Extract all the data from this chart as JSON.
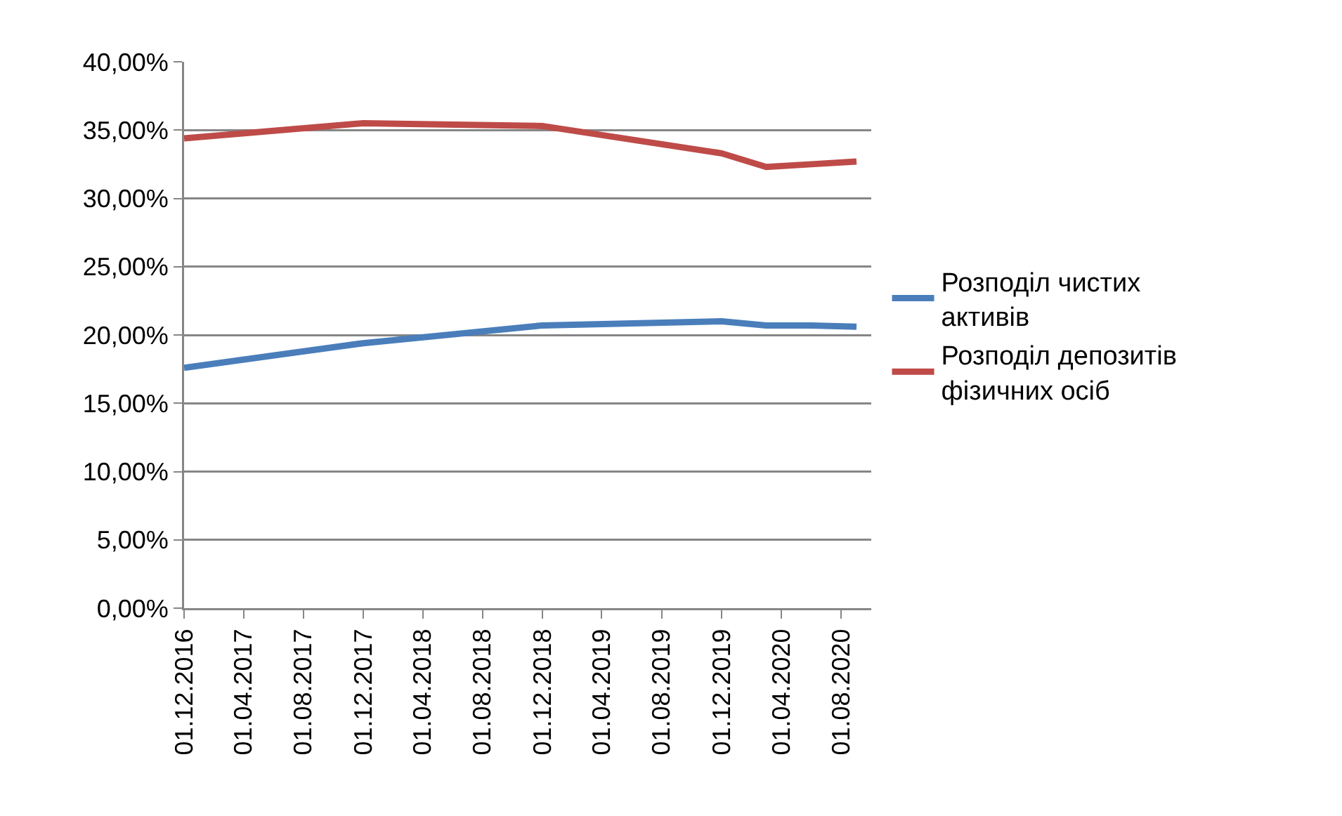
{
  "chart_data": {
    "type": "line",
    "x": [
      "2016-12-01",
      "2017-12-01",
      "2018-12-01",
      "2019-12-01",
      "2020-03-01",
      "2020-06-01",
      "2020-09-01"
    ],
    "series": [
      {
        "name": "Розподіл чистих активів",
        "color": "#4a7ebb",
        "values": [
          17.6,
          19.4,
          20.7,
          21.0,
          20.7,
          20.7,
          20.6
        ]
      },
      {
        "name": "Розподіл депозитів фізичних осіб",
        "color": "#be4b48",
        "values": [
          34.4,
          35.5,
          35.3,
          33.3,
          32.3,
          32.5,
          32.7
        ]
      }
    ],
    "xlim": [
      "2016-12-01",
      "2020-10-01"
    ],
    "xticks": [
      {
        "value": "2016-12-01",
        "label": "01.12.2016"
      },
      {
        "value": "2017-04-01",
        "label": "01.04.2017"
      },
      {
        "value": "2017-08-01",
        "label": "01.08.2017"
      },
      {
        "value": "2017-12-01",
        "label": "01.12.2017"
      },
      {
        "value": "2018-04-01",
        "label": "01.04.2018"
      },
      {
        "value": "2018-08-01",
        "label": "01.08.2018"
      },
      {
        "value": "2018-12-01",
        "label": "01.12.2018"
      },
      {
        "value": "2019-04-01",
        "label": "01.04.2019"
      },
      {
        "value": "2019-08-01",
        "label": "01.08.2019"
      },
      {
        "value": "2019-12-01",
        "label": "01.12.2019"
      },
      {
        "value": "2020-04-01",
        "label": "01.04.2020"
      },
      {
        "value": "2020-08-01",
        "label": "01.08.2020"
      }
    ],
    "ylim": [
      0,
      40
    ],
    "yticks": [
      {
        "value": 0,
        "label": "0,00%"
      },
      {
        "value": 5,
        "label": "5,00%"
      },
      {
        "value": 10,
        "label": "10,00%"
      },
      {
        "value": 15,
        "label": "15,00%"
      },
      {
        "value": 20,
        "label": "20,00%"
      },
      {
        "value": 25,
        "label": "25,00%"
      },
      {
        "value": 30,
        "label": "30,00%"
      },
      {
        "value": 35,
        "label": "35,00%"
      },
      {
        "value": 40,
        "label": "40,00%"
      }
    ],
    "grid": "y",
    "legend": "right",
    "marker": "none",
    "line_style": "solid"
  }
}
